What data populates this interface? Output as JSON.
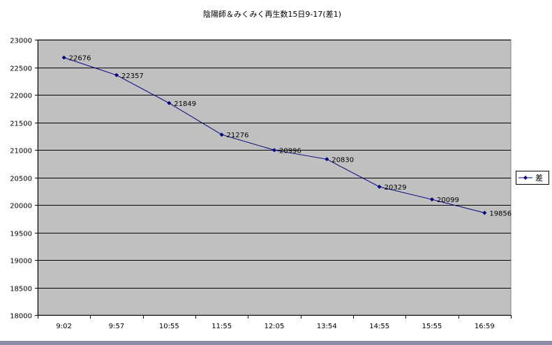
{
  "chart_data": {
    "type": "line",
    "title": "陰陽師＆みくみく再生数15日9-17(差1)",
    "categories": [
      "9:02",
      "9:57",
      "10:55",
      "11:55",
      "12:05",
      "13:54",
      "14:55",
      "15:55",
      "16:59"
    ],
    "series": [
      {
        "name": "差",
        "values": [
          22676,
          22357,
          21849,
          21276,
          20996,
          20830,
          20329,
          20099,
          19856
        ],
        "color": "#000080"
      }
    ],
    "y_ticks": [
      "23000",
      "22500",
      "22000",
      "21500",
      "21000",
      "20500",
      "20000",
      "19500",
      "19000",
      "18500",
      "18000"
    ],
    "ylim": [
      18000,
      23000
    ],
    "grid": "horizontal",
    "legend_position": "right",
    "plot_background": "#c0c0c0",
    "grid_color": "#000000",
    "line_color": "#000080"
  }
}
